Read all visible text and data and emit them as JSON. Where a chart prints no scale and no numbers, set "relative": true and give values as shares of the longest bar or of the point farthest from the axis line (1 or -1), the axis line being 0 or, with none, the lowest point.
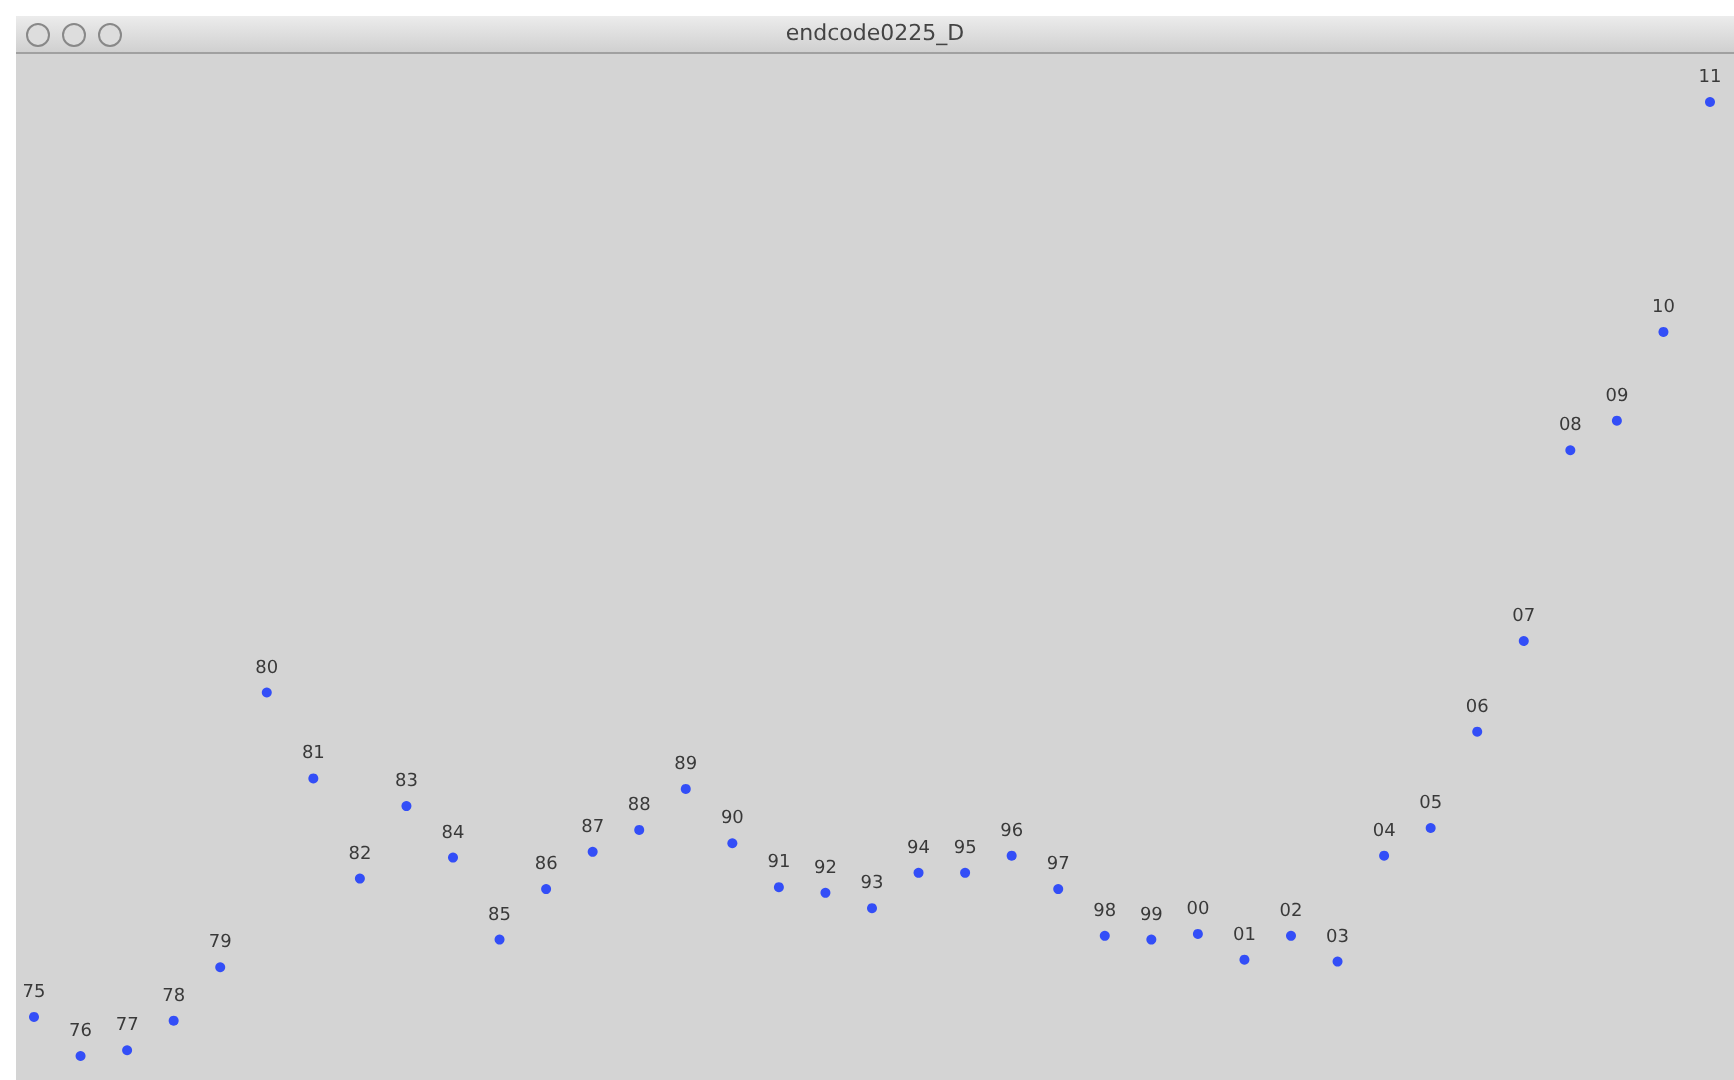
{
  "chart_data": {
    "type": "scatter",
    "title": "endcode0225_D",
    "relative": true,
    "marker": "circle",
    "color": "#0a2cff",
    "tick_labels": false,
    "categories": [
      "75",
      "76",
      "77",
      "78",
      "79",
      "80",
      "81",
      "82",
      "83",
      "84",
      "85",
      "86",
      "87",
      "88",
      "89",
      "90",
      "91",
      "92",
      "93",
      "94",
      "95",
      "96",
      "97",
      "98",
      "99",
      "00",
      "01",
      "02",
      "03",
      "04",
      "05",
      "06",
      "07",
      "08",
      "09",
      "10",
      "11"
    ],
    "values": [
      0.041,
      0,
      0.006,
      0.037,
      0.093,
      0.381,
      0.291,
      0.186,
      0.262,
      0.208,
      0.122,
      0.175,
      0.214,
      0.237,
      0.28,
      0.223,
      0.177,
      0.171,
      0.155,
      0.192,
      0.192,
      0.21,
      0.175,
      0.126,
      0.122,
      0.128,
      0.101,
      0.126,
      0.099,
      0.21,
      0.239,
      0.34,
      0.435,
      0.635,
      0.666,
      0.759,
      1
    ]
  }
}
